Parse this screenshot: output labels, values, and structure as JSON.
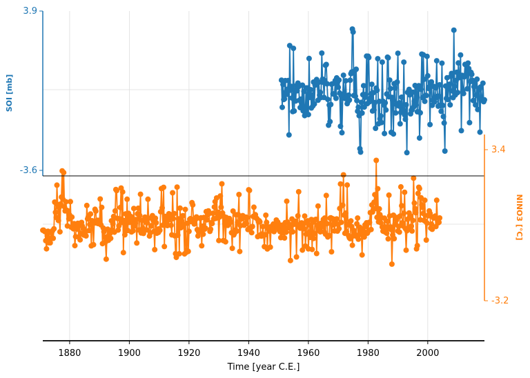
{
  "chart_data": {
    "type": "line",
    "xlabel": "Time [year C.E.]",
    "x_ticks": [
      "1880",
      "1900",
      "1920",
      "1940",
      "1960",
      "1980",
      "2000"
    ],
    "xlim": [
      1871,
      2019
    ],
    "grid": true,
    "panels": [
      {
        "name": "soi",
        "ylabel": "SOI [mb]",
        "y_tick_labels": [
          "3.9",
          "-3.6"
        ],
        "ylim": [
          -3.6,
          3.9
        ],
        "axis_side": "left",
        "color": "#1f77b4"
      },
      {
        "name": "nino3",
        "ylabel": "NINO3 [°C]",
        "y_tick_labels": [
          "3.4",
          "-3.2"
        ],
        "ylim": [
          -3.2,
          3.4
        ],
        "axis_side": "right",
        "color": "#ff7f0e"
      }
    ],
    "series": [
      {
        "panel": "soi",
        "x_start": 1951.0,
        "x_end": 2019.0,
        "envelope": [
          [
            1951,
            -2.0,
            2.0
          ],
          [
            1954,
            -2.2,
            2.4
          ],
          [
            1957,
            -2.5,
            2.0
          ],
          [
            1960,
            -2.2,
            1.7
          ],
          [
            1963,
            -1.6,
            2.4
          ],
          [
            1966,
            -1.7,
            1.5
          ],
          [
            1969,
            -1.4,
            1.8
          ],
          [
            1972,
            -2.0,
            2.8
          ],
          [
            1975,
            -2.1,
            3.2
          ],
          [
            1978,
            -3.0,
            2.0
          ],
          [
            1981,
            -2.0,
            1.7
          ],
          [
            1983,
            -3.6,
            1.9
          ],
          [
            1986,
            -1.8,
            1.6
          ],
          [
            1989,
            -2.2,
            2.4
          ],
          [
            1992,
            -3.3,
            1.5
          ],
          [
            1995,
            -1.8,
            1.6
          ],
          [
            1998,
            -2.4,
            2.1
          ],
          [
            2001,
            -1.6,
            2.0
          ],
          [
            2004,
            -1.9,
            1.6
          ],
          [
            2005,
            -3.2,
            1.4
          ],
          [
            2008,
            -1.7,
            3.0
          ],
          [
            2011,
            -1.8,
            3.6
          ],
          [
            2014,
            -1.6,
            2.7
          ],
          [
            2017,
            -2.1,
            2.0
          ],
          [
            2019,
            -1.3,
            1.4
          ]
        ]
      },
      {
        "panel": "nino3",
        "x_start": 1871.0,
        "x_end": 2004.0,
        "envelope": [
          [
            1871,
            -0.8,
            0.2
          ],
          [
            1874,
            -1.2,
            0.3
          ],
          [
            1877,
            -0.4,
            3.0
          ],
          [
            1879,
            -0.7,
            1.8
          ],
          [
            1882,
            -1.1,
            0.8
          ],
          [
            1885,
            -1.2,
            0.9
          ],
          [
            1889,
            -1.0,
            2.1
          ],
          [
            1892,
            -1.6,
            0.3
          ],
          [
            1896,
            -1.0,
            2.0
          ],
          [
            1899,
            -1.3,
            1.5
          ],
          [
            1902,
            -0.9,
            1.8
          ],
          [
            1905,
            -1.2,
            1.6
          ],
          [
            1909,
            -1.1,
            1.2
          ],
          [
            1911,
            -1.0,
            1.8
          ],
          [
            1914,
            -1.4,
            1.6
          ],
          [
            1918,
            -1.3,
            2.3
          ],
          [
            1921,
            -1.2,
            1.1
          ],
          [
            1924,
            -1.1,
            1.4
          ],
          [
            1927,
            -0.9,
            1.5
          ],
          [
            1930,
            -0.6,
            2.5
          ],
          [
            1933,
            -1.0,
            1.4
          ],
          [
            1936,
            -1.2,
            1.6
          ],
          [
            1939,
            -1.0,
            1.3
          ],
          [
            1941,
            -1.5,
            2.2
          ],
          [
            1944,
            -1.1,
            1.2
          ],
          [
            1948,
            -0.9,
            1.2
          ],
          [
            1951,
            -1.2,
            1.1
          ],
          [
            1954,
            -1.6,
            1.2
          ],
          [
            1957,
            -1.2,
            1.9
          ],
          [
            1960,
            -1.0,
            1.0
          ],
          [
            1963,
            -1.4,
            1.2
          ],
          [
            1966,
            -1.2,
            1.4
          ],
          [
            1969,
            -1.3,
            1.6
          ],
          [
            1972,
            -1.5,
            2.5
          ],
          [
            1975,
            -1.7,
            1.2
          ],
          [
            1977,
            -1.5,
            1.4
          ],
          [
            1980,
            -1.0,
            1.3
          ],
          [
            1983,
            -1.0,
            3.2
          ],
          [
            1985,
            -1.2,
            1.5
          ],
          [
            1988,
            -1.7,
            1.4
          ],
          [
            1991,
            -1.1,
            1.9
          ],
          [
            1994,
            -1.3,
            1.6
          ],
          [
            1997,
            -0.9,
            3.4
          ],
          [
            1999,
            -0.6,
            1.2
          ],
          [
            2002,
            -0.8,
            1.5
          ],
          [
            2004,
            -0.5,
            0.9
          ]
        ]
      }
    ]
  },
  "colors": {
    "soi": "#1f77b4",
    "nino3": "#ff7f0e",
    "grid": "#dddddd",
    "axis": "#000000"
  }
}
